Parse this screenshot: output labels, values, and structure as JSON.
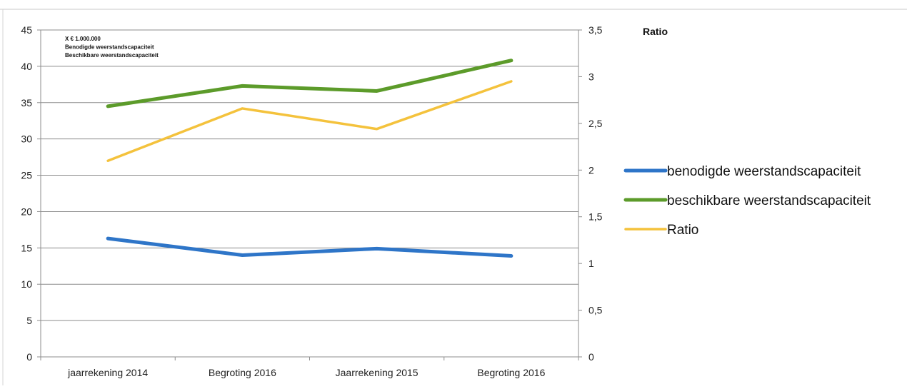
{
  "chart_data": {
    "type": "line",
    "categories": [
      "jaarrekening 2014",
      "Begroting 2016",
      "Jaarrekening 2015",
      "Begroting 2016"
    ],
    "series": [
      {
        "name": "benodigde weerstandscapaciteit",
        "axis": "left",
        "color": "#2e75c8",
        "values": [
          16.3,
          14.0,
          14.9,
          13.9
        ]
      },
      {
        "name": "beschikbare weerstandscapaciteit",
        "axis": "left",
        "color": "#5c9b2a",
        "values": [
          34.5,
          37.3,
          36.6,
          40.8
        ]
      },
      {
        "name": "Ratio",
        "axis": "right",
        "color": "#f4c23c",
        "values": [
          2.1,
          2.66,
          2.44,
          2.95
        ]
      }
    ],
    "y_left": {
      "ylim": [
        0,
        45
      ],
      "ticks": [
        0,
        5,
        10,
        15,
        20,
        25,
        30,
        35,
        40,
        45
      ],
      "tick_labels": [
        "0",
        "5",
        "10",
        "15",
        "20",
        "25",
        "30",
        "35",
        "40",
        "45"
      ]
    },
    "y_right": {
      "label": "Ratio",
      "ylim": [
        0,
        3.5
      ],
      "ticks": [
        0,
        0.5,
        1,
        1.5,
        2,
        2.5,
        3,
        3.5
      ],
      "tick_labels": [
        "0",
        "0,5",
        "1",
        "1,5",
        "2",
        "2,5",
        "3",
        "3,5"
      ]
    },
    "annotation_lines": [
      "X € 1.000.000",
      "Benodigde weerstandscapaciteit",
      "Beschikbare weerstandscapaciteit"
    ],
    "grid": true,
    "legend_position": "right"
  }
}
